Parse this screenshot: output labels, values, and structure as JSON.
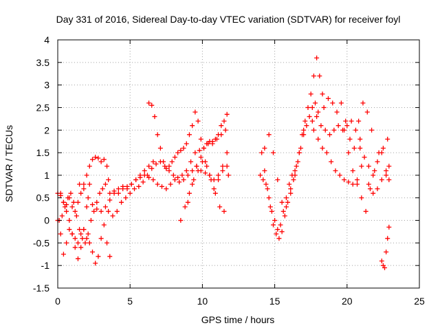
{
  "chart_data": {
    "type": "scatter",
    "title": "Day 331 of 2016, Sidereal Day-to-day VTEC variation (SDTVAR) for receiver foyl",
    "xlabel": "GPS time / hours",
    "ylabel": "SDTVAR / TECUs",
    "xlim": [
      0,
      25
    ],
    "ylim": [
      -1.5,
      4
    ],
    "xticks": [
      "0",
      "5",
      "10",
      "15",
      "20",
      "25"
    ],
    "yticks": [
      "-1.5",
      "-1",
      "-0.5",
      "0",
      "0.5",
      "1",
      "1.5",
      "2",
      "2.5",
      "3",
      "3.5",
      "4"
    ],
    "xtick_values": [
      0,
      5,
      10,
      15,
      20,
      25
    ],
    "ytick_values": [
      -1.5,
      -1,
      -0.5,
      0,
      0.5,
      1,
      1.5,
      2,
      2.5,
      3,
      3.5,
      4
    ],
    "grid": true,
    "marker": "+",
    "color": "#ff0000",
    "series": [
      {
        "name": "s1",
        "x": [
          0.0,
          0.2,
          0.4,
          0.6,
          0.8,
          1.0,
          1.2,
          1.4,
          1.6,
          1.8,
          2.0,
          2.2,
          2.4,
          2.6,
          2.8,
          3.0,
          3.2,
          3.4
        ],
        "y": [
          0.6,
          0.55,
          0.4,
          0.35,
          0.5,
          0.3,
          0.2,
          0.4,
          0.6,
          0.8,
          1.0,
          1.2,
          1.35,
          1.4,
          1.38,
          1.3,
          1.35,
          1.2
        ]
      },
      {
        "name": "s2",
        "x": [
          0.0,
          0.2,
          0.4,
          0.6,
          0.8,
          1.0,
          1.2,
          1.4,
          1.6,
          1.8,
          2.0,
          2.2,
          2.4,
          2.6,
          2.8,
          3.0,
          3.2,
          3.4,
          3.6
        ],
        "y": [
          0.0,
          -0.3,
          -0.75,
          -0.5,
          -0.2,
          -0.3,
          -0.4,
          -0.5,
          -0.3,
          -0.2,
          -0.4,
          -0.5,
          -0.7,
          -0.95,
          -0.8,
          -0.4,
          -0.1,
          -0.5,
          -0.8
        ]
      },
      {
        "name": "s3",
        "x": [
          0.1,
          0.3,
          0.5,
          0.7,
          0.9,
          1.1,
          1.3,
          1.5,
          1.7,
          1.9,
          2.1,
          2.3,
          2.5,
          2.7,
          2.9,
          3.1,
          3.3,
          3.5
        ],
        "y": [
          0.0,
          0.1,
          0.3,
          0.5,
          0.6,
          0.4,
          0.1,
          -0.2,
          -0.4,
          -0.5,
          -0.3,
          0.0,
          0.2,
          0.4,
          0.6,
          0.7,
          0.8,
          0.9
        ]
      },
      {
        "name": "s4",
        "x": [
          0.2,
          0.4,
          0.6,
          0.8,
          1.0,
          1.2,
          1.4,
          1.6,
          1.8,
          2.0,
          2.2
        ],
        "y": [
          0.6,
          0.4,
          0.2,
          0.0,
          -0.3,
          -0.6,
          -0.85,
          -0.6,
          -0.2,
          0.3,
          0.8
        ]
      },
      {
        "name": "s5",
        "x": [
          1.5,
          1.8,
          2.1,
          2.4,
          2.7,
          3.0,
          3.3,
          3.6,
          3.9,
          4.2,
          4.5,
          4.8,
          5.1,
          5.4,
          5.7,
          6.0,
          6.3,
          6.6
        ],
        "y": [
          0.8,
          0.7,
          0.5,
          0.35,
          0.25,
          0.2,
          0.3,
          0.45,
          0.6,
          0.6,
          0.7,
          0.75,
          0.8,
          0.9,
          1.0,
          1.1,
          1.2,
          1.3
        ]
      },
      {
        "name": "s6",
        "x": [
          3.5,
          3.8,
          4.1,
          4.4,
          4.7,
          5.0,
          5.3,
          5.6,
          5.9,
          6.2,
          6.5,
          6.8,
          7.1,
          7.4,
          7.7,
          8.0,
          8.3,
          8.6,
          8.9,
          9.2,
          9.5,
          9.8,
          10.1,
          10.4,
          10.7,
          11.0,
          11.3,
          11.6
        ],
        "y": [
          0.2,
          0.1,
          0.2,
          0.4,
          0.5,
          0.6,
          0.7,
          0.75,
          0.85,
          1.0,
          1.15,
          1.25,
          1.3,
          1.2,
          1.1,
          1.0,
          0.95,
          1.0,
          1.1,
          1.3,
          1.5,
          1.55,
          1.6,
          1.7,
          1.75,
          1.8,
          1.9,
          2.0
        ]
      },
      {
        "name": "s7",
        "x": [
          3.6,
          3.9,
          4.2,
          4.5,
          4.8,
          5.1,
          5.4,
          5.7,
          6.0,
          6.3,
          6.6,
          6.9,
          7.2,
          7.5,
          7.8,
          8.1,
          8.4,
          8.7,
          9.0,
          9.3,
          9.6,
          9.9,
          10.2,
          10.5,
          10.8,
          11.1,
          11.4,
          11.7
        ],
        "y": [
          0.6,
          0.65,
          0.7,
          0.75,
          0.7,
          0.8,
          0.9,
          0.95,
          1.0,
          0.95,
          0.9,
          0.8,
          0.75,
          0.7,
          0.8,
          0.9,
          0.85,
          0.9,
          1.0,
          1.1,
          1.2,
          1.1,
          1.05,
          1.0,
          0.9,
          1.0,
          1.1,
          1.2
        ]
      },
      {
        "name": "s8",
        "x": [
          6.3,
          6.5,
          6.7,
          6.9,
          7.1,
          7.3,
          7.5,
          7.7,
          7.9,
          8.1,
          8.3,
          8.5,
          8.7,
          8.9,
          9.1,
          9.3,
          9.5,
          9.7,
          9.9,
          10.1,
          10.3,
          10.5,
          10.7,
          10.9,
          11.1,
          11.3,
          11.5,
          11.7
        ],
        "y": [
          2.6,
          2.55,
          2.3,
          1.9,
          1.6,
          1.3,
          1.15,
          1.2,
          1.3,
          1.4,
          1.5,
          1.55,
          1.6,
          1.7,
          1.9,
          2.1,
          2.4,
          2.2,
          1.8,
          1.6,
          1.7,
          1.75,
          1.7,
          1.8,
          1.9,
          2.1,
          2.2,
          2.35
        ]
      },
      {
        "name": "s9",
        "x": [
          8.5,
          8.8,
          9.1,
          9.4,
          9.7,
          10.0,
          10.3,
          10.6,
          10.9,
          11.2,
          11.5,
          11.8
        ],
        "y": [
          0.0,
          0.3,
          0.6,
          0.9,
          1.1,
          1.3,
          1.2,
          0.9,
          0.6,
          0.3,
          0.2,
          1.0
        ]
      },
      {
        "name": "s10",
        "x": [
          9.0,
          9.3,
          9.6,
          9.9,
          10.2,
          10.5,
          10.8,
          11.1,
          11.4,
          11.7
        ],
        "y": [
          0.4,
          0.8,
          1.2,
          1.4,
          1.3,
          1.0,
          0.7,
          0.9,
          1.2,
          1.5
        ]
      },
      {
        "name": "s11",
        "x": [
          14.1,
          14.3,
          14.5,
          14.7,
          14.9,
          15.1,
          15.3,
          15.5,
          15.7,
          15.9,
          16.1,
          16.3,
          16.5,
          16.7,
          16.9,
          17.1,
          17.3,
          17.5,
          17.7,
          17.9,
          18.1,
          18.3
        ],
        "y": [
          1.5,
          1.1,
          0.7,
          0.3,
          -0.1,
          -0.3,
          -0.4,
          -0.25,
          0.1,
          0.4,
          0.7,
          0.9,
          1.2,
          1.5,
          1.9,
          2.2,
          2.5,
          2.8,
          3.2,
          3.6,
          3.2,
          2.8
        ]
      },
      {
        "name": "s12",
        "x": [
          14.2,
          14.4,
          14.6,
          14.8,
          15.0,
          15.2,
          15.4,
          15.6,
          15.8,
          16.0,
          16.2,
          16.4,
          16.6,
          16.8,
          17.0,
          17.2,
          17.4,
          17.6,
          17.8,
          18.0
        ],
        "y": [
          0.9,
          0.8,
          0.5,
          0.2,
          0.0,
          -0.2,
          -0.1,
          0.2,
          0.5,
          0.8,
          1.0,
          1.1,
          1.3,
          1.6,
          1.9,
          2.1,
          2.3,
          2.5,
          2.6,
          2.4
        ]
      },
      {
        "name": "s13",
        "x": [
          14.0,
          14.3,
          14.6,
          14.9,
          15.2,
          15.5,
          15.8,
          16.1,
          16.4,
          16.7,
          17.0
        ],
        "y": [
          1.0,
          1.6,
          1.9,
          1.5,
          0.9,
          0.4,
          0.3,
          0.6,
          1.0,
          1.5,
          2.0
        ]
      },
      {
        "name": "s14",
        "x": [
          17.6,
          17.9,
          18.2,
          18.5,
          18.8,
          19.1,
          19.4,
          19.7,
          20.0,
          20.3,
          20.6,
          20.9
        ],
        "y": [
          2.2,
          2.3,
          2.1,
          2.0,
          1.9,
          2.0,
          2.1,
          2.0,
          2.1,
          2.2,
          2.0,
          1.8
        ]
      },
      {
        "name": "s15",
        "x": [
          17.7,
          18.0,
          18.3,
          18.6,
          18.9,
          19.2,
          19.5,
          19.8,
          20.1,
          20.4,
          20.7,
          21.0
        ],
        "y": [
          2.0,
          1.8,
          1.6,
          1.5,
          1.3,
          1.1,
          1.0,
          0.9,
          0.85,
          0.8,
          0.9,
          1.2
        ]
      },
      {
        "name": "s16",
        "x": [
          18.4,
          18.7,
          19.0,
          19.3,
          19.6,
          19.9,
          20.2,
          20.5,
          20.8,
          21.1,
          21.4,
          21.7
        ],
        "y": [
          2.5,
          2.7,
          2.6,
          2.4,
          2.6,
          2.2,
          1.8,
          1.6,
          2.2,
          2.6,
          2.4,
          2.0
        ]
      },
      {
        "name": "s17",
        "x": [
          19.8,
          20.1,
          20.4,
          20.7,
          21.0,
          21.3,
          21.6,
          21.9,
          22.2,
          22.5,
          22.8
        ],
        "y": [
          2.0,
          1.5,
          1.1,
          0.8,
          0.5,
          0.2,
          0.7,
          1.1,
          1.5,
          1.6,
          1.8
        ]
      },
      {
        "name": "s18",
        "x": [
          21.5,
          21.8,
          22.1,
          22.4,
          22.7,
          22.9
        ],
        "y": [
          0.8,
          0.6,
          0.7,
          0.9,
          1.1,
          1.2
        ]
      },
      {
        "name": "s19",
        "x": [
          20.9,
          21.2,
          21.5,
          21.8,
          22.1,
          22.4,
          22.7,
          22.9
        ],
        "y": [
          1.6,
          1.4,
          1.2,
          1.0,
          1.3,
          1.5,
          1.0,
          0.9
        ]
      },
      {
        "name": "s20",
        "x": [
          22.4,
          22.5,
          22.6,
          22.7,
          22.8,
          22.9
        ],
        "y": [
          -0.9,
          -1.0,
          -1.05,
          -0.7,
          -0.4,
          -0.15
        ]
      }
    ]
  }
}
